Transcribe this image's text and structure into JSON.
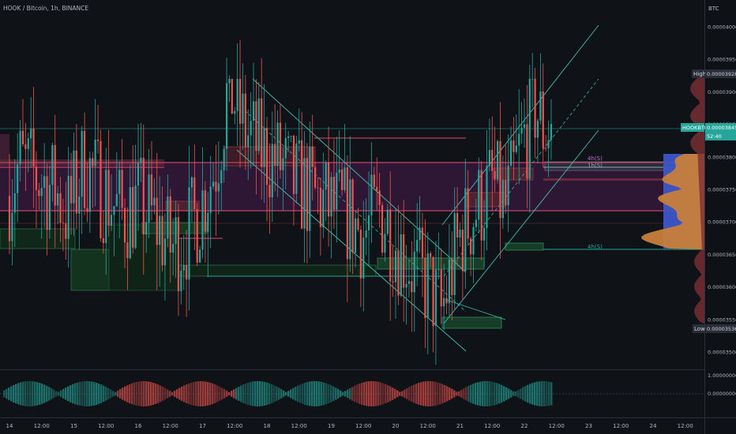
{
  "header": {
    "title": "HOOK / Bitcoin, 1h, BINANCE"
  },
  "axis": {
    "currency": "BTC",
    "ticks": [
      "0.00004000",
      "0.00003950",
      "0.00003900",
      "0.00003850",
      "0.00003800",
      "0.00003750",
      "0.00003700",
      "0.00003650",
      "0.00003600",
      "0.00003550",
      "0.00003500"
    ],
    "high_label": "High",
    "high_value": "0.00003928",
    "low_label": "Low",
    "low_value": "0.00003536",
    "symbol_label": "HOOKBTC",
    "last_price": "0.00003845",
    "countdown": "52:40",
    "osc_ticks": [
      "1.00000000",
      "0.00000000"
    ]
  },
  "time_axis": {
    "labels": [
      "14",
      "12:00",
      "15",
      "12:00",
      "16",
      "12:00",
      "17",
      "12:00",
      "18",
      "12:00",
      "19",
      "12:00",
      "20",
      "12:00",
      "21",
      "12:00",
      "22",
      "12:00",
      "23",
      "12:00",
      "24",
      "12:00"
    ]
  },
  "annotations": {
    "label_a": "4h(S)",
    "label_b": "1h(S)",
    "label_c": "4h(S)"
  },
  "colors": {
    "up": "#26a69a",
    "down": "#ef5350",
    "bg": "#0f1217",
    "purple_zone": "#4a1f4c",
    "channel": "#3fb5a3",
    "vp_orange": "#c87f3a",
    "vp_blue": "#3d56c8",
    "price_tag": "#26a69a"
  },
  "chart_data": {
    "type": "candlestick",
    "symbol": "HOOK / Bitcoin",
    "interval": "1h",
    "exchange": "BINANCE",
    "ylim": [
      3.48e-05,
      4.04e-05
    ],
    "x_labels": [
      "14",
      "15",
      "16",
      "17",
      "18",
      "19",
      "20",
      "21",
      "22",
      "23",
      "24"
    ],
    "high": 3.928e-05,
    "low": 3.536e-05,
    "last": 3.845e-05,
    "path": [
      [
        14.0,
        3.74e-05
      ],
      [
        14.2,
        3.79e-05
      ],
      [
        14.45,
        3.77e-05
      ],
      [
        14.75,
        3.75e-05
      ],
      [
        14.95,
        3.71e-05
      ],
      [
        15.2,
        3.79e-05
      ],
      [
        15.55,
        3.74e-05
      ],
      [
        15.8,
        3.71e-05
      ],
      [
        16.05,
        3.73e-05
      ],
      [
        16.3,
        3.7e-05
      ],
      [
        16.55,
        3.66e-05
      ],
      [
        16.8,
        3.68e-05
      ],
      [
        17.0,
        3.72e-05
      ],
      [
        17.25,
        3.79e-05
      ],
      [
        17.45,
        3.91e-05
      ],
      [
        17.7,
        3.84e-05
      ],
      [
        17.95,
        3.81e-05
      ],
      [
        18.25,
        3.79e-05
      ],
      [
        18.45,
        3.76e-05
      ],
      [
        18.75,
        3.74e-05
      ],
      [
        19.05,
        3.72e-05
      ],
      [
        19.3,
        3.71e-05
      ],
      [
        19.55,
        3.68e-05
      ],
      [
        19.8,
        3.72e-05
      ],
      [
        20.05,
        3.67e-05
      ],
      [
        20.3,
        3.63e-05
      ],
      [
        20.55,
        3.6e-05
      ],
      [
        20.75,
        3.56e-05
      ],
      [
        20.9,
        3.62e-05
      ],
      [
        21.05,
        3.68e-05
      ],
      [
        21.3,
        3.72e-05
      ],
      [
        21.55,
        3.76e-05
      ],
      [
        21.75,
        3.72e-05
      ],
      [
        21.95,
        3.8e-05
      ],
      [
        22.2,
        3.88e-05
      ],
      [
        22.35,
        3.84e-05
      ],
      [
        22.45,
        3.85e-05
      ]
    ]
  }
}
